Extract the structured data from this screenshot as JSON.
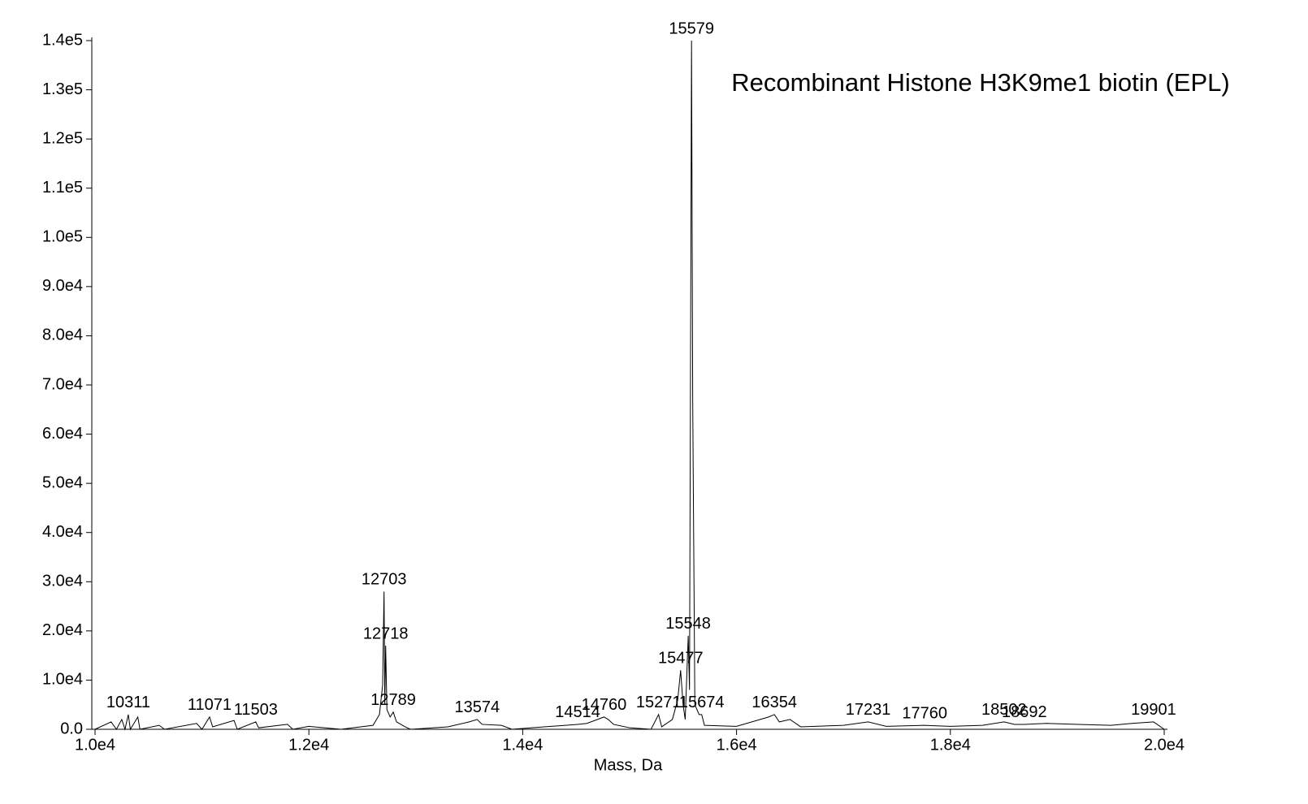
{
  "chart_data": {
    "type": "line",
    "title": "Recombinant Histone H3K9me1 biotin (EPL)",
    "x_label": "Mass, Da",
    "x": [
      10000,
      10150,
      10200,
      10250,
      10280,
      10311,
      10330,
      10400,
      10420,
      10600,
      10650,
      10950,
      11000,
      11071,
      11100,
      11300,
      11330,
      11503,
      11530,
      11800,
      11850,
      12000,
      12300,
      12600,
      12660,
      12690,
      12703,
      12710,
      12718,
      12730,
      12760,
      12789,
      12820,
      12900,
      12950,
      13300,
      13500,
      13574,
      13620,
      13800,
      13900,
      14200,
      14400,
      14514,
      14600,
      14700,
      14760,
      14800,
      14850,
      15000,
      15200,
      15271,
      15300,
      15400,
      15450,
      15477,
      15500,
      15520,
      15548,
      15560,
      15579,
      15590,
      15610,
      15650,
      15674,
      15700,
      16000,
      16300,
      16354,
      16400,
      16500,
      16600,
      17000,
      17231,
      17400,
      17760,
      18000,
      18300,
      18502,
      18600,
      18692,
      18900,
      19200,
      19500,
      19700,
      19901,
      20000
    ],
    "values": [
      0,
      1500,
      0,
      2000,
      0,
      3000,
      0,
      2500,
      0,
      800,
      0,
      1200,
      0,
      2500,
      500,
      1800,
      0,
      1500,
      300,
      1000,
      0,
      600,
      0,
      800,
      3000,
      9000,
      28000,
      5000,
      17000,
      4000,
      2500,
      3500,
      1500,
      500,
      0,
      500,
      1500,
      2000,
      1000,
      800,
      0,
      500,
      800,
      1000,
      1200,
      2000,
      2500,
      2000,
      1000,
      300,
      0,
      3000,
      500,
      2000,
      6000,
      12000,
      5000,
      2000,
      19000,
      8000,
      140000,
      67000,
      5000,
      3000,
      3000,
      800,
      600,
      2500,
      3000,
      1500,
      2000,
      500,
      800,
      1500,
      600,
      800,
      600,
      800,
      1500,
      1000,
      1000,
      1200,
      1000,
      800,
      1200,
      1500,
      0
    ],
    "color": "#000000",
    "peak_labels": [
      10311,
      11071,
      11503,
      12703,
      12718,
      12789,
      13574,
      14514,
      14760,
      15271,
      15477,
      15548,
      15579,
      15674,
      16354,
      17231,
      17760,
      18502,
      18692,
      19901
    ],
    "xlim": [
      10000,
      20000
    ],
    "xticks": [
      {
        "value": 10000,
        "label": "1.0e4"
      },
      {
        "value": 12000,
        "label": "1.2e4"
      },
      {
        "value": 14000,
        "label": "1.4e4"
      },
      {
        "value": 16000,
        "label": "1.6e4"
      },
      {
        "value": 18000,
        "label": "1.8e4"
      },
      {
        "value": 20000,
        "label": "2.0e4"
      }
    ],
    "ylim": [
      0,
      140000
    ],
    "yticks": [
      {
        "value": 0,
        "label": "0.0"
      },
      {
        "value": 10000,
        "label": "1.0e4"
      },
      {
        "value": 20000,
        "label": "2.0e4"
      },
      {
        "value": 30000,
        "label": "3.0e4"
      },
      {
        "value": 40000,
        "label": "4.0e4"
      },
      {
        "value": 50000,
        "label": "5.0e4"
      },
      {
        "value": 60000,
        "label": "6.0e4"
      },
      {
        "value": 70000,
        "label": "7.0e4"
      },
      {
        "value": 80000,
        "label": "8.0e4"
      },
      {
        "value": 90000,
        "label": "9.0e4"
      },
      {
        "value": 100000,
        "label": "1.0e5"
      },
      {
        "value": 110000,
        "label": "1.1e5"
      },
      {
        "value": 120000,
        "label": "1.2e5"
      },
      {
        "value": 130000,
        "label": "1.3e5"
      },
      {
        "value": 140000,
        "label": "1.4e5"
      }
    ],
    "grid": false
  }
}
